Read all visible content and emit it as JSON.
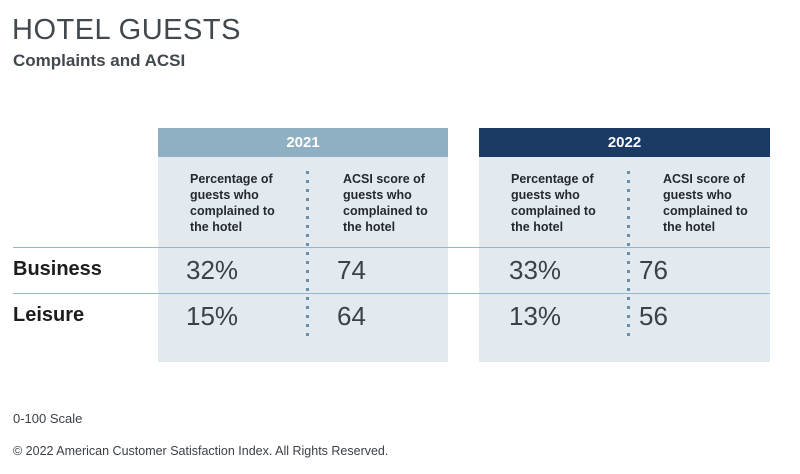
{
  "header": {
    "title": "HOTEL GUESTS",
    "subtitle": "Complaints and ACSI"
  },
  "table": {
    "year_groups": [
      {
        "year": "2021",
        "columns": [
          "Percentage of guests who complained to the hotel",
          "ACSI score of guests who complained to the hotel"
        ]
      },
      {
        "year": "2022",
        "columns": [
          "Percentage of guests who complained to the hotel",
          "ACSI score of guests who complained to the hotel"
        ]
      }
    ],
    "rows": [
      {
        "label": "Business",
        "values": [
          "32%",
          "74",
          "33%",
          "76"
        ]
      },
      {
        "label": "Leisure",
        "values": [
          "15%",
          "64",
          "13%",
          "56"
        ]
      }
    ]
  },
  "footer": {
    "scale_note": "0-100 Scale",
    "copyright": "© 2022 American Customer Satisfaction Index. All Rights Reserved."
  },
  "colors": {
    "band-2021": "#8fafc2",
    "band-2022": "#1b3a64",
    "band-text": "#ffffff",
    "cell-bg": "#e3eaef",
    "row-line": "#93b6cd",
    "dot-line": "#6a8fab",
    "title-text": "#41484e",
    "header-text": "#24292f",
    "label-text": "#1c1d1f",
    "value-text": "#3b4147",
    "footer-text": "#3b4147"
  },
  "chart_data": {
    "type": "table",
    "title": "HOTEL GUESTS",
    "subtitle": "Complaints and ACSI",
    "column_groups": [
      "2021",
      "2022"
    ],
    "columns": [
      "2021 Percentage of guests who complained to the hotel",
      "2021 ACSI score of guests who complained to the hotel",
      "2022 Percentage of guests who complained to the hotel",
      "2022 ACSI score of guests who complained to the hotel"
    ],
    "row_categories": [
      "Business",
      "Leisure"
    ],
    "values": [
      [
        32,
        74,
        33,
        76
      ],
      [
        15,
        64,
        13,
        56
      ]
    ],
    "value_units": [
      "percent",
      "ACSI score (0-100)",
      "percent",
      "ACSI score (0-100)"
    ],
    "notes": [
      "0-100 Scale"
    ],
    "source": "© 2022 American Customer Satisfaction Index. All Rights Reserved."
  }
}
